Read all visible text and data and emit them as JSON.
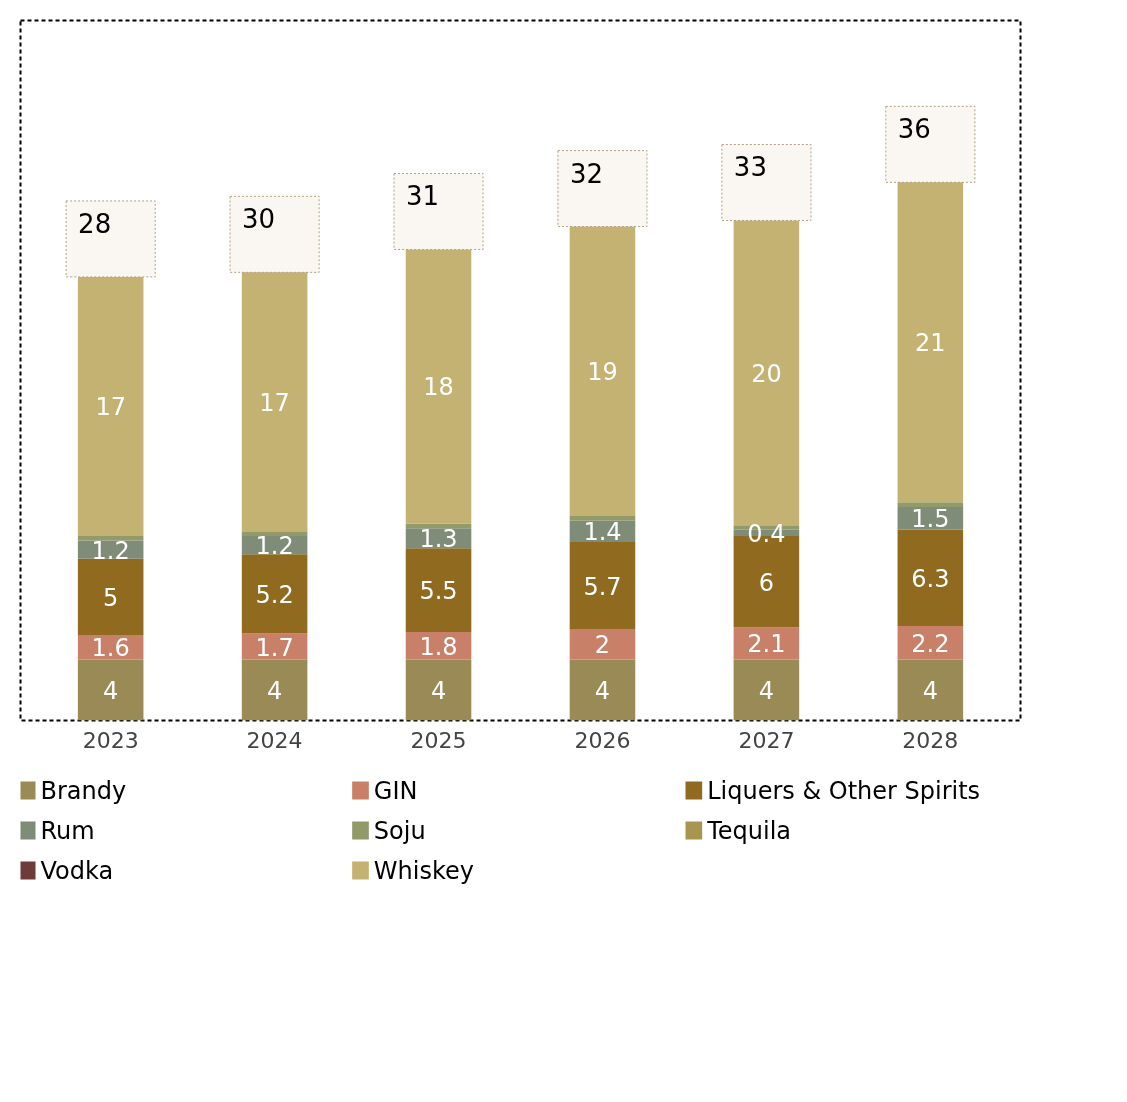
{
  "chart_data": {
    "type": "bar",
    "stacked": true,
    "categories": [
      "2023",
      "2024",
      "2025",
      "2026",
      "2027",
      "2028"
    ],
    "series": [
      {
        "name": "Brandy",
        "color": "#9a8a55",
        "values": [
          4,
          4,
          4,
          4,
          4,
          4
        ],
        "value_labels": [
          "4",
          "4",
          "4",
          "4",
          "4",
          "4"
        ]
      },
      {
        "name": "GIN",
        "color": "#c98068",
        "values": [
          1.6,
          1.7,
          1.8,
          2,
          2.1,
          2.2
        ],
        "value_labels": [
          "1.6",
          "1.7",
          "1.8",
          "2",
          "2.1",
          "2.2"
        ]
      },
      {
        "name": "Liquers & Other Spirits",
        "color": "#8f6a1f",
        "values": [
          5,
          5.2,
          5.5,
          5.7,
          6,
          6.3
        ],
        "value_labels": [
          "5",
          "5.2",
          "5.5",
          "5.7",
          "6",
          "6.3"
        ]
      },
      {
        "name": "Rum",
        "color": "#7f8c78",
        "values": [
          1.2,
          1.2,
          1.3,
          1.4,
          0.4,
          1.5
        ],
        "value_labels": [
          "1.2",
          "1.2",
          "1.3",
          "1.4",
          "0.4",
          "1.5"
        ]
      },
      {
        "name": "Soju",
        "color": "#939a6a",
        "values": [
          0.3,
          0.3,
          0.3,
          0.3,
          0.3,
          0.3
        ],
        "value_labels": [
          null,
          null,
          null,
          null,
          null,
          null
        ]
      },
      {
        "name": "Tequila",
        "color": "#a89550",
        "values": [
          null,
          null,
          null,
          null,
          null,
          null
        ]
      },
      {
        "name": "Vodka",
        "color": "#6e3b3b",
        "values": [
          null,
          null,
          null,
          null,
          null,
          null
        ]
      },
      {
        "name": "Whiskey",
        "color": "#c4b273",
        "values": [
          17,
          17,
          18,
          19,
          20,
          21
        ],
        "value_labels": [
          "17",
          "17",
          "18",
          "19",
          "20",
          "21"
        ]
      }
    ],
    "totals": [
      "28",
      "30",
      "31",
      "32",
      "33",
      "36"
    ],
    "legend": "bottom",
    "grid": false
  }
}
